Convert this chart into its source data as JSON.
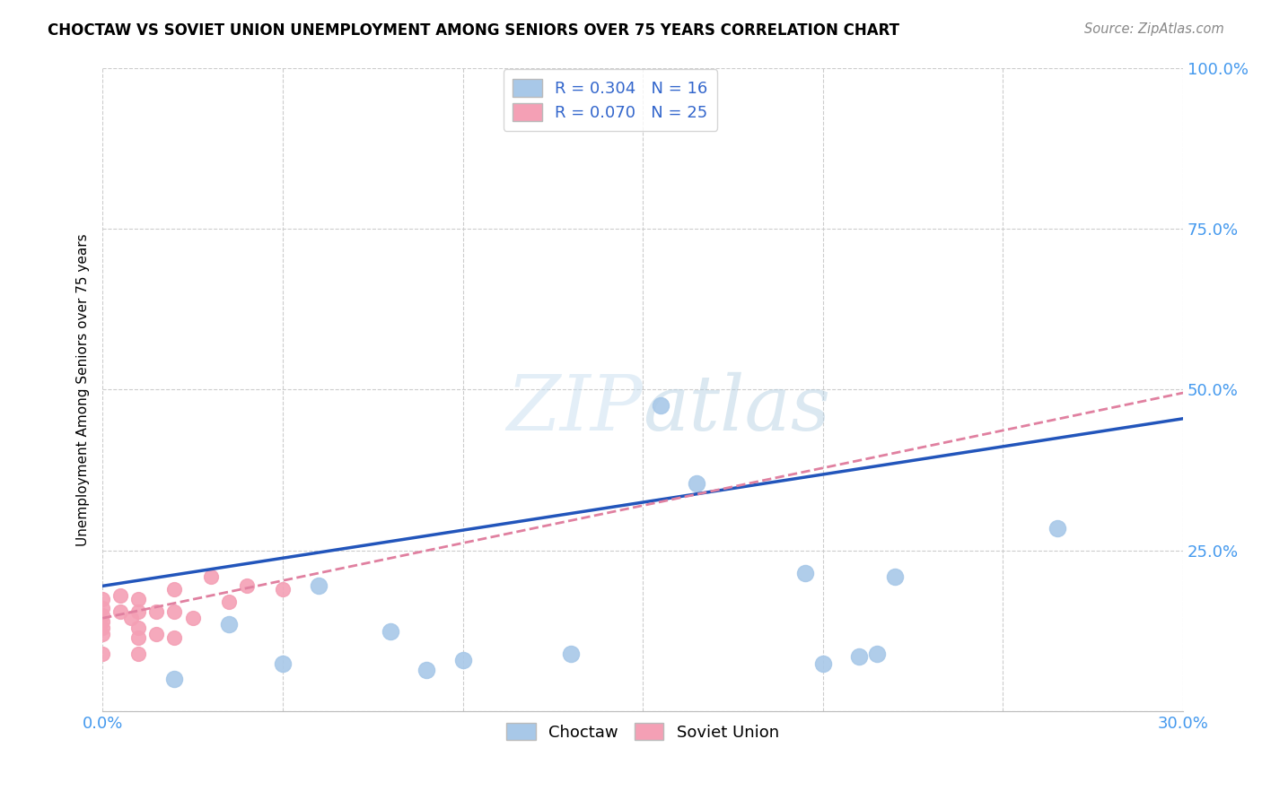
{
  "title": "CHOCTAW VS SOVIET UNION UNEMPLOYMENT AMONG SENIORS OVER 75 YEARS CORRELATION CHART",
  "source": "Source: ZipAtlas.com",
  "ylabel_label": "Unemployment Among Seniors over 75 years",
  "xlim": [
    0.0,
    0.3
  ],
  "ylim": [
    0.0,
    1.0
  ],
  "xticks": [
    0.0,
    0.05,
    0.1,
    0.15,
    0.2,
    0.25,
    0.3
  ],
  "yticks": [
    0.0,
    0.25,
    0.5,
    0.75,
    1.0
  ],
  "xtick_labels": [
    "0.0%",
    "",
    "",
    "",
    "",
    "",
    "30.0%"
  ],
  "ytick_labels": [
    "",
    "25.0%",
    "50.0%",
    "75.0%",
    "100.0%"
  ],
  "choctaw_color": "#a8c8e8",
  "soviet_color": "#f4a0b5",
  "choctaw_line_color": "#2255bb",
  "soviet_line_color": "#e080a0",
  "choctaw_R": 0.304,
  "choctaw_N": 16,
  "soviet_R": 0.07,
  "soviet_N": 25,
  "choctaw_x": [
    0.02,
    0.035,
    0.05,
    0.06,
    0.08,
    0.09,
    0.1,
    0.13,
    0.155,
    0.165,
    0.195,
    0.2,
    0.21,
    0.215,
    0.22,
    0.265
  ],
  "choctaw_y": [
    0.05,
    0.135,
    0.075,
    0.195,
    0.125,
    0.065,
    0.08,
    0.09,
    0.475,
    0.355,
    0.215,
    0.075,
    0.085,
    0.09,
    0.21,
    0.285
  ],
  "soviet_x": [
    0.0,
    0.0,
    0.0,
    0.0,
    0.0,
    0.0,
    0.0,
    0.005,
    0.005,
    0.008,
    0.01,
    0.01,
    0.01,
    0.01,
    0.01,
    0.015,
    0.015,
    0.02,
    0.02,
    0.02,
    0.025,
    0.03,
    0.035,
    0.04,
    0.05
  ],
  "soviet_y": [
    0.175,
    0.16,
    0.15,
    0.14,
    0.13,
    0.12,
    0.09,
    0.18,
    0.155,
    0.145,
    0.175,
    0.155,
    0.13,
    0.115,
    0.09,
    0.155,
    0.12,
    0.19,
    0.155,
    0.115,
    0.145,
    0.21,
    0.17,
    0.195,
    0.19
  ],
  "choctaw_trendline_x": [
    0.0,
    0.3
  ],
  "choctaw_trendline_y": [
    0.195,
    0.455
  ],
  "soviet_trendline_x": [
    0.0,
    0.3
  ],
  "soviet_trendline_y": [
    0.145,
    0.495
  ],
  "watermark_zip": "ZIP",
  "watermark_atlas": "atlas",
  "background_color": "#ffffff",
  "grid_color": "#cccccc"
}
